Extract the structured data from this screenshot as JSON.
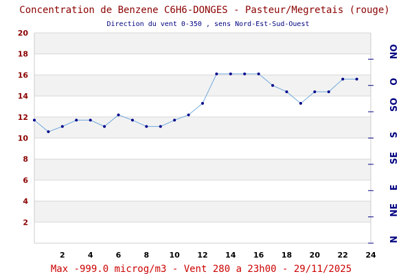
{
  "chart_data": {
    "type": "line",
    "title": "Concentration de Benzene C6H6-DONGES - Pasteur/Megretais (rouge)",
    "subtitle": "Direction du vent 0-350 , sens Nord-Est-Sud-Ouest",
    "footer": "Max -999.0 microg/m3 - Vent 280  a 23h00 - 29/11/2025",
    "xlim": [
      0,
      24
    ],
    "ylim": [
      0,
      20
    ],
    "x_ticks": [
      "2",
      "4",
      "6",
      "8",
      "10",
      "12",
      "14",
      "16",
      "18",
      "20",
      "22",
      "24"
    ],
    "y_ticks": [
      "2",
      "4",
      "6",
      "8",
      "10",
      "12",
      "14",
      "16",
      "18",
      "20"
    ],
    "direction_labels": [
      "N",
      "NE",
      "E",
      "SE",
      "S",
      "SO",
      "O",
      "NO"
    ],
    "grid": true,
    "colors": {
      "line": "#6fa8dc",
      "marker": "#00008b",
      "band": "#f2f2f2",
      "title": "#8b0000",
      "footer": "#cc0000",
      "direction": "#000080"
    },
    "series": [
      {
        "x": [
          0,
          1,
          2,
          3,
          4,
          5,
          6,
          7,
          8,
          9,
          10,
          11,
          12,
          13,
          14,
          15,
          16,
          17,
          18,
          19,
          20,
          21,
          22,
          23
        ],
        "values": [
          11.7,
          10.6,
          11.1,
          11.7,
          11.7,
          11.1,
          12.2,
          11.7,
          11.1,
          11.1,
          11.7,
          12.2,
          13.3,
          16.1,
          16.1,
          16.1,
          16.1,
          15.0,
          14.4,
          13.3,
          14.4,
          14.4,
          15.6,
          15.6
        ]
      }
    ]
  }
}
